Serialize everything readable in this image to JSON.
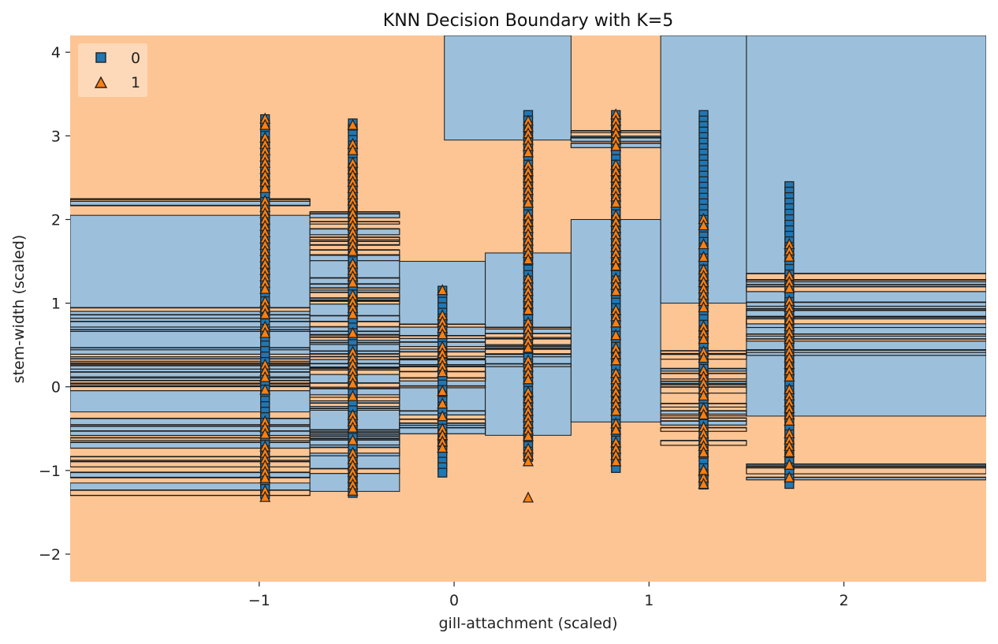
{
  "chart_data": {
    "type": "scatter",
    "title": "KNN Decision Boundary with K=5",
    "xlabel": "gill-attachment (scaled)",
    "ylabel": "stem-width (scaled)",
    "xlim": [
      -1.97,
      2.73
    ],
    "ylim": [
      -2.33,
      4.2
    ],
    "xticks": [
      -1,
      0,
      1,
      2
    ],
    "xtick_labels": [
      "−1",
      "0",
      "1",
      "2"
    ],
    "yticks": [
      -2,
      -1,
      0,
      1,
      2,
      3,
      4
    ],
    "ytick_labels": [
      "−2",
      "−1",
      "0",
      "1",
      "2",
      "3",
      "4"
    ],
    "grid": false,
    "legend_position": "top-left",
    "colors": {
      "class0_region": "#9cc0dc",
      "class1_region": "#fdc594",
      "class0_marker": "#1f77b4",
      "class1_marker": "#ff7f0e",
      "boundary_line": "#1a1a1a"
    },
    "decision_regions": {
      "background_class": "1",
      "class0_regions": [
        {
          "x": [
            -1.97,
            -0.74
          ],
          "y": [
            -0.3,
            2.05
          ]
        },
        {
          "x": [
            -0.74,
            -0.28
          ],
          "y": [
            -1.25,
            1.55
          ]
        },
        {
          "x": [
            -0.28,
            0.16
          ],
          "y": [
            -0.3,
            1.5
          ]
        },
        {
          "x": [
            0.16,
            0.6
          ],
          "y": [
            -0.58,
            1.6
          ]
        },
        {
          "x": [
            0.6,
            1.06
          ],
          "y": [
            -0.42,
            2.0
          ]
        },
        {
          "x": [
            1.06,
            1.5
          ],
          "y": [
            1.0,
            4.2
          ]
        },
        {
          "x": [
            1.5,
            2.73
          ],
          "y": [
            -0.35,
            4.2
          ]
        },
        {
          "x": [
            -0.05,
            0.6
          ],
          "y": [
            2.95,
            4.2
          ]
        },
        {
          "x": [
            -1.97,
            -0.74
          ],
          "y": [
            -1.3,
            -1.15
          ]
        }
      ],
      "boundary_bands": [
        {
          "x": [
            -1.97,
            -0.74
          ],
          "y": [
            -1.3,
            0.95
          ]
        },
        {
          "x": [
            -1.97,
            -0.74
          ],
          "y": [
            2.0,
            2.25
          ]
        },
        {
          "x": [
            -0.74,
            -0.28
          ],
          "y": [
            -1.05,
            2.15
          ]
        },
        {
          "x": [
            -0.28,
            0.16
          ],
          "y": [
            -0.55,
            0.75
          ]
        },
        {
          "x": [
            0.16,
            0.6
          ],
          "y": [
            0.2,
            0.75
          ]
        },
        {
          "x": [
            0.6,
            1.06
          ],
          "y": [
            2.7,
            3.1
          ]
        },
        {
          "x": [
            1.06,
            1.5
          ],
          "y": [
            -0.7,
            0.45
          ]
        },
        {
          "x": [
            1.5,
            2.73
          ],
          "y": [
            -1.1,
            -0.85
          ]
        },
        {
          "x": [
            1.5,
            2.73
          ],
          "y": [
            0.4,
            1.5
          ]
        }
      ]
    },
    "series": [
      {
        "name": "0",
        "marker": "square",
        "x": [
          -0.97,
          -0.52,
          -0.06,
          0.38,
          0.83,
          1.28,
          1.72
        ],
        "y_min": [
          -1.35,
          -1.3,
          -1.05,
          -0.85,
          -1.0,
          -1.2,
          -1.2
        ],
        "y_max": [
          3.2,
          3.15,
          1.15,
          3.25,
          3.25,
          3.25,
          2.4
        ]
      },
      {
        "name": "1",
        "marker": "triangle",
        "x": [
          -0.97,
          -0.52,
          -0.06,
          0.38,
          0.83,
          1.28,
          1.72
        ],
        "y_min": [
          -1.35,
          -1.3,
          -0.85,
          -0.9,
          -0.95,
          -1.2,
          -1.15
        ],
        "y_max": [
          3.2,
          3.2,
          1.15,
          3.25,
          3.25,
          2.0,
          1.7
        ]
      }
    ],
    "outliers": [
      {
        "series": "1",
        "x": 0.38,
        "y": -1.33
      },
      {
        "series": "1",
        "x": 1.28,
        "y": -1.0
      }
    ]
  }
}
